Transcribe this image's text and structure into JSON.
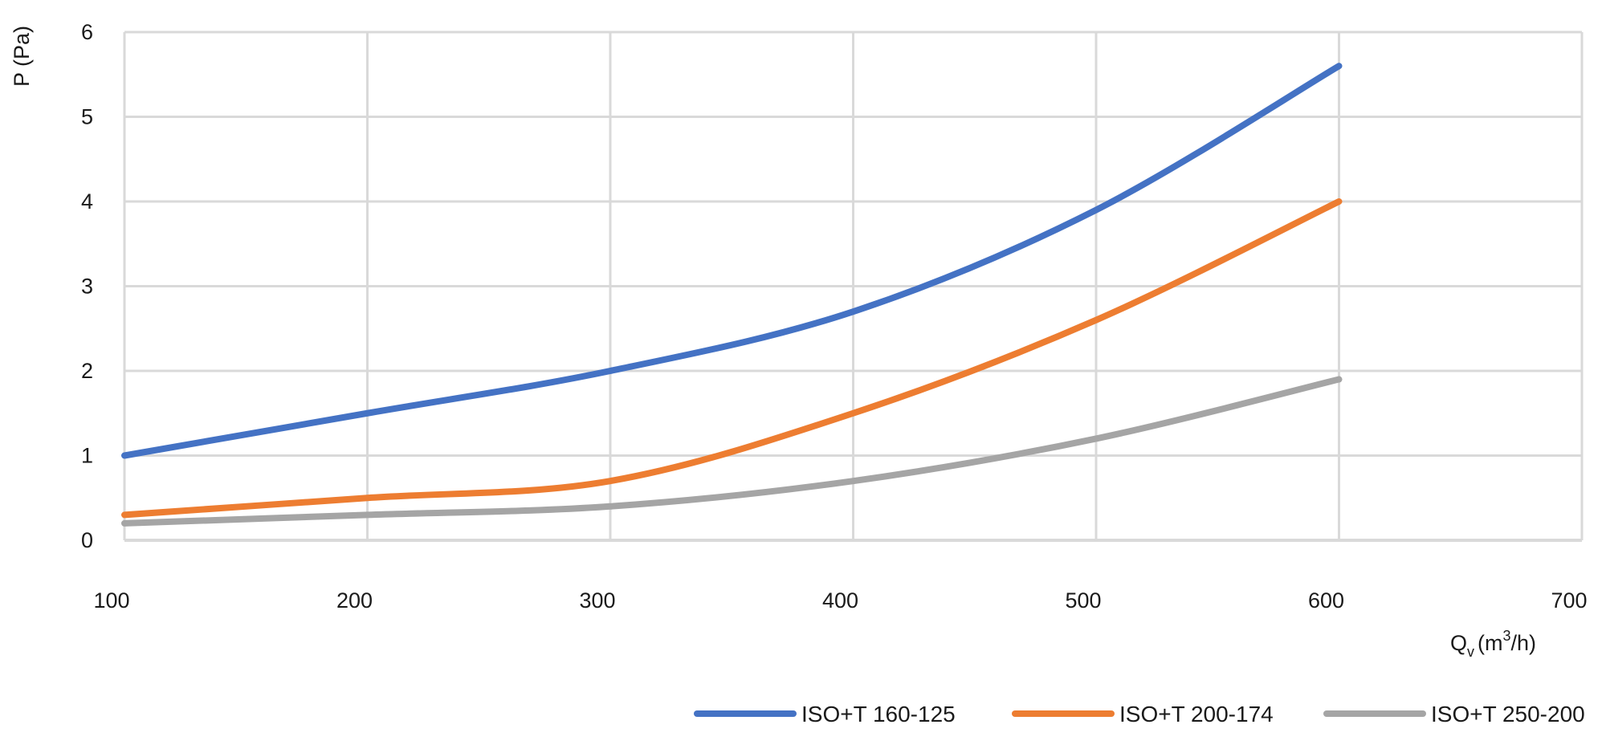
{
  "chart_data": {
    "type": "line",
    "ylabel": "P (Pa)",
    "xlabel": {
      "base": "Q",
      "sub": "v",
      "pre": "(m",
      "sup": "3",
      "post": "/h)"
    },
    "xlim": [
      100,
      700
    ],
    "ylim": [
      0,
      6
    ],
    "x_ticks": [
      "100",
      "200",
      "300",
      "400",
      "500",
      "600",
      "700"
    ],
    "y_ticks": [
      "0",
      "1",
      "2",
      "3",
      "4",
      "5",
      "6"
    ],
    "grid": true,
    "legend": "bottom-right",
    "series": [
      {
        "name": "ISO+T 160-125",
        "color": "#4472C4",
        "points": [
          [
            100,
            1.0
          ],
          [
            200,
            1.5
          ],
          [
            300,
            2.0
          ],
          [
            400,
            2.7
          ],
          [
            500,
            3.9
          ],
          [
            600,
            5.6
          ]
        ]
      },
      {
        "name": "ISO+T 200-174",
        "color": "#ED7D31",
        "points": [
          [
            100,
            0.3
          ],
          [
            200,
            0.5
          ],
          [
            300,
            0.7
          ],
          [
            400,
            1.5
          ],
          [
            500,
            2.6
          ],
          [
            600,
            4.0
          ]
        ]
      },
      {
        "name": "ISO+T 250-200",
        "color": "#A5A5A5",
        "points": [
          [
            100,
            0.2
          ],
          [
            200,
            0.3
          ],
          [
            300,
            0.4
          ],
          [
            400,
            0.7
          ],
          [
            500,
            1.2
          ],
          [
            600,
            1.9
          ]
        ]
      }
    ]
  }
}
